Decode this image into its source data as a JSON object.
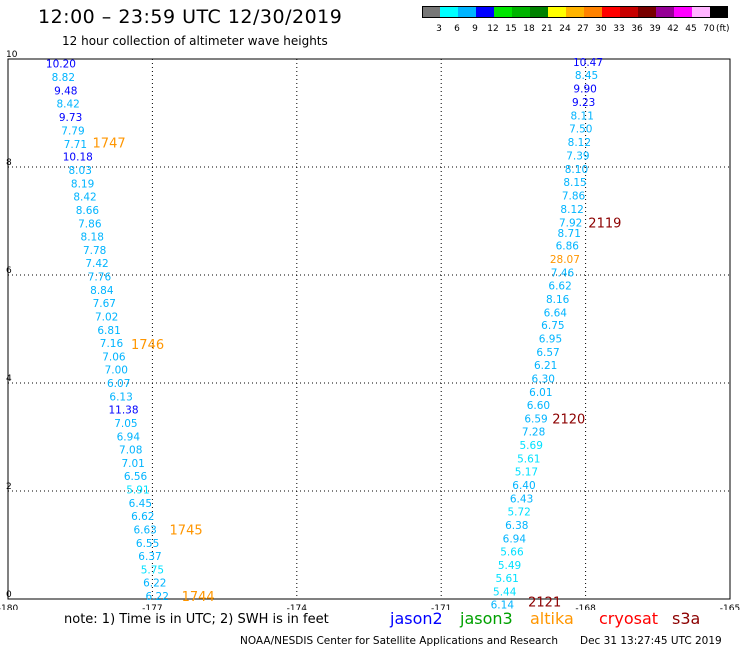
{
  "header": {
    "title": "12:00 – 23:59 UTC 12/30/2019",
    "subtitle": "12 hour collection of altimeter wave heights"
  },
  "scale": {
    "labels": [
      "3",
      "6",
      "9",
      "12",
      "15",
      "18",
      "21",
      "24",
      "27",
      "30",
      "33",
      "36",
      "39",
      "42",
      "45",
      "70",
      "(ft)"
    ],
    "colors": [
      "#777777",
      "#00ffff",
      "#00b4ff",
      "#0000ff",
      "#00e600",
      "#00b400",
      "#008200",
      "#ffff00",
      "#ffb400",
      "#ff8200",
      "#ff0000",
      "#c80000",
      "#780000",
      "#960096",
      "#ff00ff",
      "#ffb4ff",
      "#000000"
    ]
  },
  "footer": {
    "note": "note: 1) Time is in UTC; 2) SWH is in feet",
    "satellites": [
      {
        "name": "jason2",
        "color": "#0000ff"
      },
      {
        "name": "jason3",
        "color": "#00a000"
      },
      {
        "name": "altika",
        "color": "#ff9600"
      },
      {
        "name": "cryosat",
        "color": "#ff0000"
      },
      {
        "name": "s3a",
        "color": "#8c0000"
      }
    ],
    "credit": "NOAA/NESDIS Center for Satellite Applications and Research",
    "timestamp": "Dec 31 13:27:45 UTC 2019"
  },
  "chart_data": {
    "type": "scatter",
    "x_ticks": [
      "-180",
      "-177",
      "-174",
      "-171",
      "-168",
      "-165"
    ],
    "y_ticks": [
      "0",
      "2",
      "4",
      "6",
      "8",
      "10"
    ],
    "xlim": [
      -180,
      -165
    ],
    "ylim": [
      0,
      10
    ],
    "grid": true,
    "tracks": [
      {
        "points": [
          {
            "x": -178.9,
            "y": 9.92,
            "v": "10.20",
            "color": "#0000ff"
          },
          {
            "x": -178.85,
            "y": 9.67,
            "v": "8.82",
            "color": "#00b4ff"
          },
          {
            "x": -178.8,
            "y": 9.42,
            "v": "9.48",
            "color": "#0000ff"
          },
          {
            "x": -178.75,
            "y": 9.18,
            "v": "8.42",
            "color": "#00b4ff"
          },
          {
            "x": -178.7,
            "y": 8.93,
            "v": "9.73",
            "color": "#0000ff"
          },
          {
            "x": -178.65,
            "y": 8.68,
            "v": "7.79",
            "color": "#00b4ff"
          },
          {
            "x": -178.6,
            "y": 8.43,
            "v": "7.71",
            "color": "#00b4ff"
          },
          {
            "x": -178.55,
            "y": 8.19,
            "v": "10.18",
            "color": "#0000ff"
          },
          {
            "x": -178.5,
            "y": 7.94,
            "v": "8.03",
            "color": "#00b4ff"
          },
          {
            "x": -178.45,
            "y": 7.69,
            "v": "8.19",
            "color": "#00b4ff"
          },
          {
            "x": -178.4,
            "y": 7.45,
            "v": "8.42",
            "color": "#00b4ff"
          },
          {
            "x": -178.35,
            "y": 7.2,
            "v": "8.66",
            "color": "#00b4ff"
          },
          {
            "x": -178.3,
            "y": 6.95,
            "v": "7.86",
            "color": "#00b4ff"
          },
          {
            "x": -178.25,
            "y": 6.71,
            "v": "8.18",
            "color": "#00b4ff"
          },
          {
            "x": -178.2,
            "y": 6.46,
            "v": "7.78",
            "color": "#00b4ff"
          },
          {
            "x": -178.15,
            "y": 6.22,
            "v": "7.42",
            "color": "#00b4ff"
          },
          {
            "x": -178.1,
            "y": 5.97,
            "v": "7.76",
            "color": "#00b4ff"
          },
          {
            "x": -178.05,
            "y": 5.72,
            "v": "8.84",
            "color": "#00b4ff"
          },
          {
            "x": -178.0,
            "y": 5.48,
            "v": "7.67",
            "color": "#00b4ff"
          },
          {
            "x": -177.95,
            "y": 5.23,
            "v": "7.02",
            "color": "#00b4ff"
          },
          {
            "x": -177.9,
            "y": 4.98,
            "v": "6.81",
            "color": "#00b4ff"
          },
          {
            "x": -177.85,
            "y": 4.74,
            "v": "7.16",
            "color": "#00b4ff"
          },
          {
            "x": -177.8,
            "y": 4.49,
            "v": "7.06",
            "color": "#00b4ff"
          },
          {
            "x": -177.75,
            "y": 4.25,
            "v": "7.00",
            "color": "#00b4ff"
          },
          {
            "x": -177.7,
            "y": 4.0,
            "v": "6.07",
            "color": "#00b4ff"
          },
          {
            "x": -177.65,
            "y": 3.75,
            "v": "6.13",
            "color": "#00b4ff"
          },
          {
            "x": -177.6,
            "y": 3.51,
            "v": "11.38",
            "color": "#0000ff"
          },
          {
            "x": -177.55,
            "y": 3.26,
            "v": "7.05",
            "color": "#00b4ff"
          },
          {
            "x": -177.5,
            "y": 3.01,
            "v": "6.94",
            "color": "#00b4ff"
          },
          {
            "x": -177.45,
            "y": 2.77,
            "v": "7.08",
            "color": "#00b4ff"
          },
          {
            "x": -177.4,
            "y": 2.52,
            "v": "7.01",
            "color": "#00b4ff"
          },
          {
            "x": -177.35,
            "y": 2.28,
            "v": "6.56",
            "color": "#00b4ff"
          },
          {
            "x": -177.3,
            "y": 2.03,
            "v": "5.91",
            "color": "#00e0ff"
          },
          {
            "x": -177.25,
            "y": 1.78,
            "v": "6.45",
            "color": "#00b4ff"
          },
          {
            "x": -177.2,
            "y": 1.54,
            "v": "6.62",
            "color": "#00b4ff"
          },
          {
            "x": -177.15,
            "y": 1.29,
            "v": "6.63",
            "color": "#00b4ff"
          },
          {
            "x": -177.1,
            "y": 1.04,
            "v": "6.55",
            "color": "#00b4ff"
          },
          {
            "x": -177.05,
            "y": 0.8,
            "v": "6.37",
            "color": "#00b4ff"
          },
          {
            "x": -177.0,
            "y": 0.55,
            "v": "5.75",
            "color": "#00e0ff"
          },
          {
            "x": -176.95,
            "y": 0.31,
            "v": "6.22",
            "color": "#00b4ff"
          },
          {
            "x": -176.9,
            "y": 0.06,
            "v": "6.22",
            "color": "#00b4ff"
          }
        ],
        "time_labels": [
          {
            "x": -177.9,
            "y": 8.45,
            "label": "1747",
            "color": "#ff9600"
          },
          {
            "x": -177.1,
            "y": 4.72,
            "label": "1746",
            "color": "#ff9600"
          },
          {
            "x": -176.3,
            "y": 1.29,
            "label": "1745",
            "color": "#ff9600"
          },
          {
            "x": -176.05,
            "y": 0.06,
            "label": "1744",
            "color": "#ff9600"
          }
        ]
      },
      {
        "points": [
          {
            "x": -167.95,
            "y": 9.94,
            "v": "10.47",
            "color": "#0000ff"
          },
          {
            "x": -167.98,
            "y": 9.7,
            "v": "8.45",
            "color": "#00b4ff"
          },
          {
            "x": -168.01,
            "y": 9.45,
            "v": "9.90",
            "color": "#0000ff"
          },
          {
            "x": -168.04,
            "y": 9.2,
            "v": "9.23",
            "color": "#0000ff"
          },
          {
            "x": -168.07,
            "y": 8.95,
            "v": "8.11",
            "color": "#00b4ff"
          },
          {
            "x": -168.1,
            "y": 8.71,
            "v": "7.50",
            "color": "#00b4ff"
          },
          {
            "x": -168.13,
            "y": 8.46,
            "v": "8.12",
            "color": "#00b4ff"
          },
          {
            "x": -168.16,
            "y": 8.21,
            "v": "7.39",
            "color": "#00b4ff"
          },
          {
            "x": -168.19,
            "y": 7.96,
            "v": "8.10",
            "color": "#00b4ff"
          },
          {
            "x": -168.22,
            "y": 7.72,
            "v": "8.15",
            "color": "#00b4ff"
          },
          {
            "x": -168.25,
            "y": 7.47,
            "v": "7.86",
            "color": "#00b4ff"
          },
          {
            "x": -168.28,
            "y": 7.22,
            "v": "8.12",
            "color": "#00b4ff"
          },
          {
            "x": -168.31,
            "y": 6.97,
            "v": "7.92",
            "color": "#00b4ff"
          },
          {
            "x": -168.34,
            "y": 6.78,
            "v": "8.71",
            "color": "#00b4ff"
          },
          {
            "x": -168.38,
            "y": 6.55,
            "v": "6.86",
            "color": "#00b4ff"
          },
          {
            "x": -168.43,
            "y": 6.3,
            "v": "28.07",
            "color": "#ff9600"
          },
          {
            "x": -168.48,
            "y": 6.05,
            "v": "7.46",
            "color": "#00b4ff"
          },
          {
            "x": -168.53,
            "y": 5.81,
            "v": "6.62",
            "color": "#00b4ff"
          },
          {
            "x": -168.58,
            "y": 5.56,
            "v": "8.16",
            "color": "#00b4ff"
          },
          {
            "x": -168.63,
            "y": 5.31,
            "v": "6.64",
            "color": "#00b4ff"
          },
          {
            "x": -168.68,
            "y": 5.07,
            "v": "6.75",
            "color": "#00b4ff"
          },
          {
            "x": -168.73,
            "y": 4.82,
            "v": "6.95",
            "color": "#00b4ff"
          },
          {
            "x": -168.78,
            "y": 4.57,
            "v": "6.57",
            "color": "#00b4ff"
          },
          {
            "x": -168.83,
            "y": 4.33,
            "v": "6.21",
            "color": "#00b4ff"
          },
          {
            "x": -168.88,
            "y": 4.08,
            "v": "6.30",
            "color": "#00b4ff"
          },
          {
            "x": -168.93,
            "y": 3.83,
            "v": "6.01",
            "color": "#00b4ff"
          },
          {
            "x": -168.98,
            "y": 3.59,
            "v": "6.60",
            "color": "#00b4ff"
          },
          {
            "x": -169.03,
            "y": 3.34,
            "v": "6.59",
            "color": "#00b4ff"
          },
          {
            "x": -169.08,
            "y": 3.1,
            "v": "7.28",
            "color": "#00b4ff"
          },
          {
            "x": -169.13,
            "y": 2.85,
            "v": "5.69",
            "color": "#00e0ff"
          },
          {
            "x": -169.18,
            "y": 2.6,
            "v": "5.61",
            "color": "#00e0ff"
          },
          {
            "x": -169.23,
            "y": 2.36,
            "v": "5.17",
            "color": "#00e0ff"
          },
          {
            "x": -169.28,
            "y": 2.11,
            "v": "6.40",
            "color": "#00b4ff"
          },
          {
            "x": -169.33,
            "y": 1.86,
            "v": "6.43",
            "color": "#00b4ff"
          },
          {
            "x": -169.38,
            "y": 1.62,
            "v": "5.72",
            "color": "#00e0ff"
          },
          {
            "x": -169.43,
            "y": 1.37,
            "v": "6.38",
            "color": "#00b4ff"
          },
          {
            "x": -169.48,
            "y": 1.12,
            "v": "6.94",
            "color": "#00b4ff"
          },
          {
            "x": -169.53,
            "y": 0.88,
            "v": "5.66",
            "color": "#00e0ff"
          },
          {
            "x": -169.58,
            "y": 0.63,
            "v": "5.49",
            "color": "#00e0ff"
          },
          {
            "x": -169.63,
            "y": 0.39,
            "v": "5.61",
            "color": "#00e0ff"
          },
          {
            "x": -169.68,
            "y": 0.14,
            "v": "5.44",
            "color": "#00e0ff"
          },
          {
            "x": -169.73,
            "y": -0.1,
            "v": "6.14",
            "color": "#00b4ff"
          }
        ],
        "time_labels": [
          {
            "x": -167.6,
            "y": 6.97,
            "label": "2119",
            "color": "#8c0000"
          },
          {
            "x": -168.35,
            "y": 3.34,
            "label": "2120",
            "color": "#8c0000"
          },
          {
            "x": -168.85,
            "y": -0.05,
            "label": "2121",
            "color": "#8c0000"
          }
        ]
      }
    ]
  }
}
